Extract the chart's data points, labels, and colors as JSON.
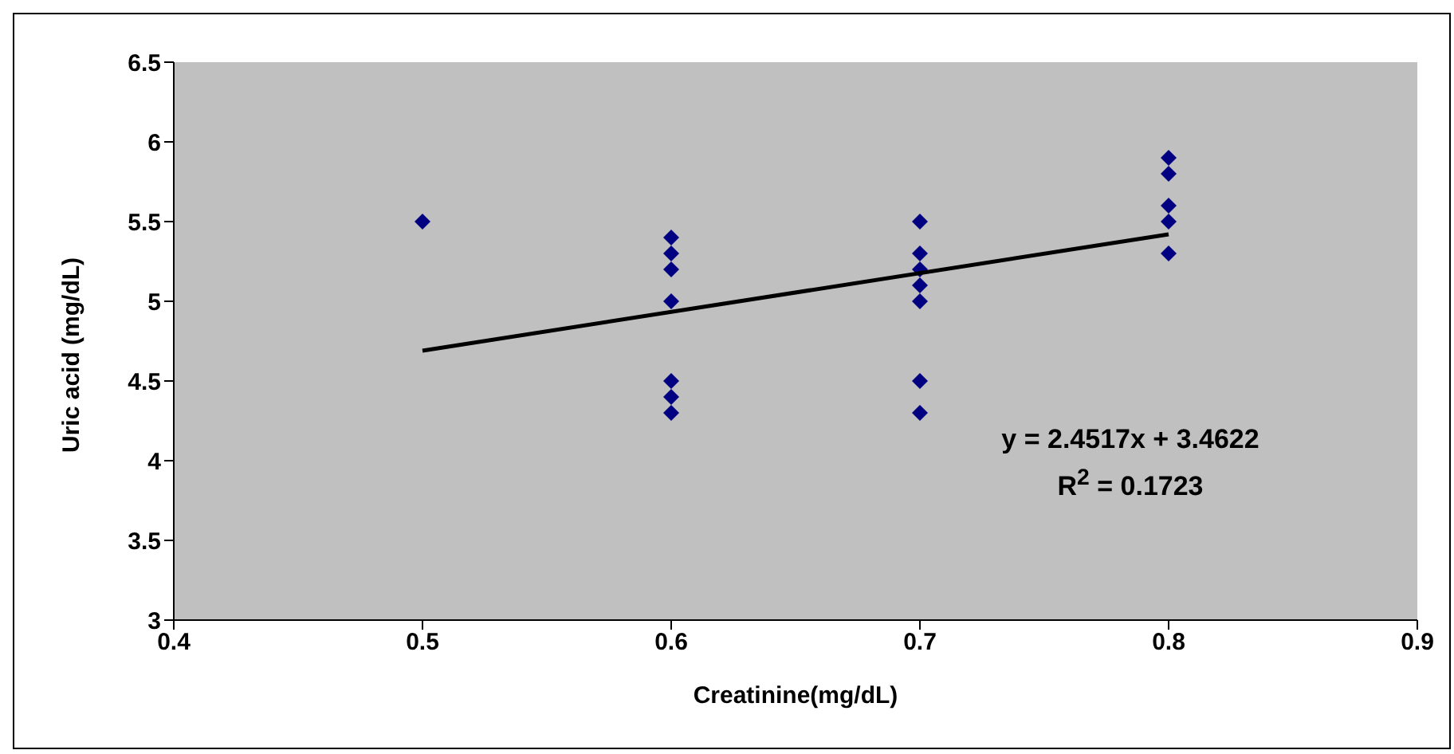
{
  "chart_data": {
    "type": "scatter",
    "xlabel": "Creatinine(mg/dL)",
    "ylabel": "Uric acid (mg/dL)",
    "series": [
      {
        "type": "scatter",
        "color": "#000080",
        "marker": "diamond",
        "x": [
          0.5,
          0.6,
          0.6,
          0.6,
          0.6,
          0.6,
          0.6,
          0.6,
          0.7,
          0.7,
          0.7,
          0.7,
          0.7,
          0.7,
          0.7,
          0.8,
          0.8,
          0.8,
          0.8,
          0.8
        ],
        "values": [
          5.5,
          5.4,
          5.3,
          5.2,
          5.0,
          4.5,
          4.4,
          4.3,
          5.5,
          5.3,
          5.2,
          5.1,
          5.0,
          4.5,
          4.3,
          5.9,
          5.8,
          5.6,
          5.5,
          5.3
        ]
      },
      {
        "type": "line",
        "color": "#000000",
        "x": [
          0.5,
          0.8
        ],
        "values": [
          4.69,
          5.42
        ]
      }
    ],
    "annotations": [
      "y = 2.4517x + 3.4622",
      "R$^{2}$ = 0.1723"
    ],
    "xlim": [
      0.4,
      0.9
    ],
    "xticks": [
      0.4,
      0.5,
      0.6,
      0.7,
      0.8,
      0.9
    ],
    "ylim": [
      3,
      6.5
    ],
    "yticks": [
      3,
      3.5,
      4,
      4.5,
      5,
      5.5,
      6,
      6.5
    ],
    "grid": false,
    "legend": false
  }
}
